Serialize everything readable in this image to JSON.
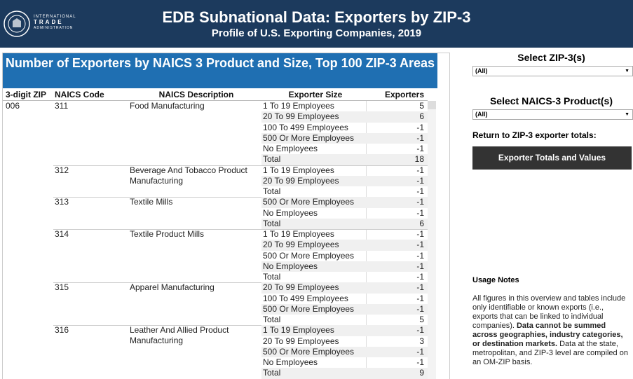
{
  "header": {
    "logo_lines": [
      "INTERNATIONAL",
      "TRADE",
      "ADMINISTRATION"
    ],
    "title": "EDB Subnational Data: Exporters by ZIP-3",
    "subtitle": "Profile of U.S. Exporting Companies, 2019"
  },
  "table": {
    "title": "Number of Exporters by NAICS 3 Product and Size, Top 100 ZIP-3 Areas",
    "columns": [
      "3-digit ZIP",
      "NAICS Code",
      "NAICS Description",
      "Exporter Size",
      "Exporters"
    ],
    "groups": [
      {
        "zip": "006",
        "naics": [
          {
            "code": "311",
            "description": "Food Manufacturing",
            "rows": [
              {
                "size": "1 To 19 Employees",
                "exporters": 5
              },
              {
                "size": "20 To 99 Employees",
                "exporters": 6
              },
              {
                "size": "100 To 499 Employees",
                "exporters": -1
              },
              {
                "size": "500 Or More Employees",
                "exporters": -1
              },
              {
                "size": "No Employees",
                "exporters": -1
              },
              {
                "size": "Total",
                "exporters": 18
              }
            ]
          },
          {
            "code": "312",
            "description": "Beverage And Tobacco Product Manufacturing",
            "rows": [
              {
                "size": "1 To 19 Employees",
                "exporters": -1
              },
              {
                "size": "20 To 99 Employees",
                "exporters": -1
              },
              {
                "size": "Total",
                "exporters": -1
              }
            ]
          },
          {
            "code": "313",
            "description": "Textile Mills",
            "rows": [
              {
                "size": "500 Or More Employees",
                "exporters": -1
              },
              {
                "size": "No Employees",
                "exporters": -1
              },
              {
                "size": "Total",
                "exporters": 6
              }
            ]
          },
          {
            "code": "314",
            "description": "Textile Product Mills",
            "rows": [
              {
                "size": "1 To 19 Employees",
                "exporters": -1
              },
              {
                "size": "20 To 99 Employees",
                "exporters": -1
              },
              {
                "size": "500 Or More Employees",
                "exporters": -1
              },
              {
                "size": "No Employees",
                "exporters": -1
              },
              {
                "size": "Total",
                "exporters": -1
              }
            ]
          },
          {
            "code": "315",
            "description": "Apparel Manufacturing",
            "rows": [
              {
                "size": "20 To 99 Employees",
                "exporters": -1
              },
              {
                "size": "100 To 499 Employees",
                "exporters": -1
              },
              {
                "size": "500 Or More Employees",
                "exporters": -1
              },
              {
                "size": "Total",
                "exporters": 5
              }
            ]
          },
          {
            "code": "316",
            "description": "Leather And Allied Product Manufacturing",
            "rows": [
              {
                "size": "1 To 19 Employees",
                "exporters": -1
              },
              {
                "size": "20 To 99 Employees",
                "exporters": 3
              },
              {
                "size": "500 Or More Employees",
                "exporters": -1
              },
              {
                "size": "No Employees",
                "exporters": -1
              },
              {
                "size": "Total",
                "exporters": 9
              }
            ]
          }
        ]
      }
    ]
  },
  "sidebar": {
    "zip_label": "Select ZIP-3(s)",
    "zip_value": "(All)",
    "naics_label": "Select NAICS-3 Product(s)",
    "naics_value": "(All)",
    "return_label": "Return to ZIP-3 exporter totals:",
    "button": "Exporter Totals and Values"
  },
  "notes": {
    "title": "Usage Notes",
    "text_1": "All figures in this overview and tables include only identifiable or known exports (i.e., exports that can be linked to individual companies). ",
    "bold": "Data cannot be summed across geographies, industry categories, or destination markets.",
    "text_2": " Data at the state, metropolitan, and ZIP-3 level are compiled on an OM-ZIP basis."
  }
}
